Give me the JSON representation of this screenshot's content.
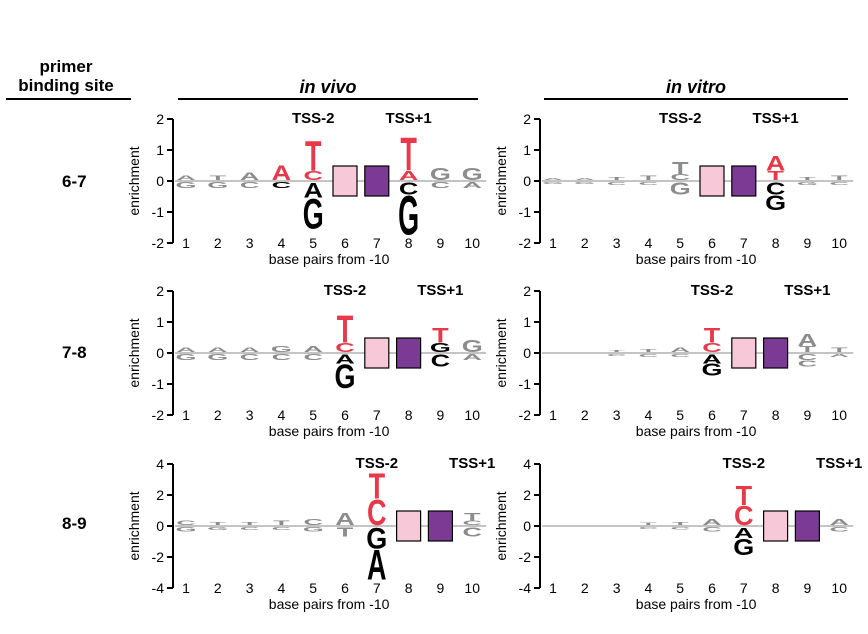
{
  "header": {
    "primer_line1": "primer",
    "primer_line2": "binding site",
    "in_vivo": "in vivo",
    "in_vitro": "in vitro"
  },
  "rows": [
    "6-7",
    "7-8",
    "8-9"
  ],
  "colors": {
    "T_highlight": "#e8394a",
    "pink_box": "#f6c8d8",
    "purple_box": "#7b3a93",
    "other_bases": "#8c8c8c",
    "strong_base": "#000000"
  },
  "chart_data": [
    {
      "type": "sequence-logo",
      "panel": "in vivo, 6-7",
      "ylabel": "enrichment",
      "xlabel": "base pairs from -10",
      "x": [
        1,
        2,
        3,
        4,
        5,
        6,
        7,
        8,
        9,
        10
      ],
      "ylim": [
        -2,
        2
      ],
      "yticks": [
        2,
        1,
        0,
        -1,
        -2
      ],
      "annotations": [
        {
          "text": "TSS-2",
          "x": 5
        },
        {
          "text": "TSS+1",
          "x": 8
        }
      ],
      "boxes": [
        {
          "x": 6,
          "color": "pink"
        },
        {
          "x": 7,
          "color": "purple"
        }
      ],
      "positions": [
        {
          "x": 1,
          "up": [
            [
              "A",
              0.15
            ]
          ],
          "down": [
            [
              "G",
              0.2
            ]
          ]
        },
        {
          "x": 2,
          "up": [
            [
              "T",
              0.15
            ]
          ],
          "down": [
            [
              "G",
              0.2
            ]
          ]
        },
        {
          "x": 3,
          "up": [
            [
              "A",
              0.25
            ]
          ],
          "down": [
            [
              "C",
              0.2
            ]
          ]
        },
        {
          "x": 4,
          "up": [
            [
              "A",
              0.5
            ]
          ],
          "down": [
            [
              "C",
              0.2
            ]
          ]
        },
        {
          "x": 5,
          "up": [
            [
              "C",
              0.3
            ],
            [
              "T",
              1.0
            ]
          ],
          "down": [
            [
              "A",
              0.5
            ],
            [
              "G",
              1.0
            ]
          ]
        },
        {
          "x": 8,
          "up": [
            [
              "A",
              0.3
            ],
            [
              "T",
              1.1
            ]
          ],
          "down": [
            [
              "C",
              0.4
            ],
            [
              "G",
              1.3
            ]
          ]
        },
        {
          "x": 9,
          "up": [
            [
              "G",
              0.4
            ]
          ],
          "down": [
            [
              "C",
              0.2
            ]
          ]
        },
        {
          "x": 10,
          "up": [
            [
              "G",
              0.4
            ]
          ],
          "down": [
            [
              "A",
              0.2
            ]
          ]
        }
      ]
    },
    {
      "type": "sequence-logo",
      "panel": "in vitro, 6-7",
      "ylabel": "enrichment",
      "xlabel": "base pairs from -10",
      "x": [
        1,
        2,
        3,
        4,
        5,
        6,
        7,
        8,
        9,
        10
      ],
      "ylim": [
        -2,
        2
      ],
      "yticks": [
        2,
        1,
        0,
        -1,
        -2
      ],
      "annotations": [
        {
          "text": "TSS-2",
          "x": 5
        },
        {
          "text": "TSS+1",
          "x": 8
        }
      ],
      "boxes": [
        {
          "x": 6,
          "color": "pink"
        },
        {
          "x": 7,
          "color": "purple"
        }
      ],
      "positions": [
        {
          "x": 1,
          "up": [
            [
              "A",
              0.05
            ]
          ],
          "down": [
            [
              "G",
              0.05
            ]
          ]
        },
        {
          "x": 2,
          "up": [
            [
              "A",
              0.05
            ]
          ],
          "down": [
            [
              "G",
              0.05
            ]
          ]
        },
        {
          "x": 3,
          "up": [
            [
              "T",
              0.1
            ]
          ],
          "down": [
            [
              "C",
              0.1
            ]
          ]
        },
        {
          "x": 4,
          "up": [
            [
              "T",
              0.15
            ]
          ],
          "down": [
            [
              "C",
              0.1
            ]
          ]
        },
        {
          "x": 5,
          "up": [
            [
              "C",
              0.2
            ],
            [
              "T",
              0.4
            ]
          ],
          "down": [
            [
              "G",
              0.4
            ]
          ]
        },
        {
          "x": 8,
          "up": [
            [
              "T",
              0.3
            ],
            [
              "A",
              0.5
            ]
          ],
          "down": [
            [
              "C",
              0.4
            ],
            [
              "G",
              0.5
            ]
          ]
        },
        {
          "x": 9,
          "up": [
            [
              "T",
              0.1
            ]
          ],
          "down": [
            [
              "G",
              0.1
            ]
          ]
        },
        {
          "x": 10,
          "up": [
            [
              "T",
              0.15
            ]
          ],
          "down": [
            [
              "C",
              0.1
            ]
          ]
        }
      ]
    },
    {
      "type": "sequence-logo",
      "panel": "in vivo, 7-8",
      "ylabel": "enrichment",
      "xlabel": "base pairs from -10",
      "x": [
        1,
        2,
        3,
        4,
        5,
        6,
        7,
        8,
        9,
        10
      ],
      "ylim": [
        -2,
        2
      ],
      "yticks": [
        2,
        1,
        0,
        -1,
        -2
      ],
      "annotations": [
        {
          "text": "TSS-2",
          "x": 6
        },
        {
          "text": "TSS+1",
          "x": 9
        }
      ],
      "boxes": [
        {
          "x": 7,
          "color": "pink"
        },
        {
          "x": 8,
          "color": "purple"
        }
      ],
      "positions": [
        {
          "x": 1,
          "up": [
            [
              "A",
              0.15
            ]
          ],
          "down": [
            [
              "G",
              0.2
            ]
          ]
        },
        {
          "x": 2,
          "up": [
            [
              "A",
              0.15
            ]
          ],
          "down": [
            [
              "G",
              0.2
            ]
          ]
        },
        {
          "x": 3,
          "up": [
            [
              "A",
              0.15
            ]
          ],
          "down": [
            [
              "C",
              0.2
            ]
          ]
        },
        {
          "x": 4,
          "up": [
            [
              "G",
              0.2
            ]
          ],
          "down": [
            [
              "C",
              0.2
            ]
          ]
        },
        {
          "x": 5,
          "up": [
            [
              "A",
              0.2
            ]
          ],
          "down": [
            [
              "C",
              0.2
            ]
          ]
        },
        {
          "x": 6,
          "up": [
            [
              "C",
              0.3
            ],
            [
              "T",
              0.9
            ]
          ],
          "down": [
            [
              "A",
              0.3
            ],
            [
              "G",
              0.8
            ]
          ]
        },
        {
          "x": 9,
          "up": [
            [
              "G",
              0.3
            ],
            [
              "T",
              0.5
            ]
          ],
          "down": [
            [
              "C",
              0.4
            ]
          ]
        },
        {
          "x": 10,
          "up": [
            [
              "G",
              0.4
            ]
          ],
          "down": [
            [
              "A",
              0.2
            ]
          ]
        }
      ]
    },
    {
      "type": "sequence-logo",
      "panel": "in vitro, 7-8",
      "ylabel": "enrichment",
      "xlabel": "base pairs from -10",
      "x": [
        1,
        2,
        3,
        4,
        5,
        6,
        7,
        8,
        9,
        10
      ],
      "ylim": [
        -2,
        2
      ],
      "yticks": [
        2,
        1,
        0,
        -1,
        -2
      ],
      "annotations": [
        {
          "text": "TSS-2",
          "x": 6
        },
        {
          "text": "TSS+1",
          "x": 9
        }
      ],
      "boxes": [
        {
          "x": 7,
          "color": "pink"
        },
        {
          "x": 8,
          "color": "purple"
        }
      ],
      "positions": [
        {
          "x": 3,
          "up": [
            [
              "T",
              0.05
            ]
          ],
          "down": [
            [
              "C",
              0.05
            ]
          ]
        },
        {
          "x": 4,
          "up": [
            [
              "T",
              0.1
            ]
          ],
          "down": [
            [
              "C",
              0.1
            ]
          ]
        },
        {
          "x": 5,
          "up": [
            [
              "A",
              0.15
            ]
          ],
          "down": [
            [
              "C",
              0.1
            ]
          ]
        },
        {
          "x": 6,
          "up": [
            [
              "C",
              0.3
            ],
            [
              "T",
              0.5
            ]
          ],
          "down": [
            [
              "A",
              0.3
            ],
            [
              "G",
              0.4
            ]
          ]
        },
        {
          "x": 9,
          "up": [
            [
              "T",
              0.2
            ],
            [
              "A",
              0.4
            ]
          ],
          "down": [
            [
              "C",
              0.2
            ],
            [
              "C",
              0.2
            ]
          ]
        },
        {
          "x": 10,
          "up": [
            [
              "T",
              0.15
            ]
          ],
          "down": [
            [
              "A",
              0.1
            ]
          ]
        }
      ]
    },
    {
      "type": "sequence-logo",
      "panel": "in vivo, 8-9",
      "ylabel": "enrichment",
      "xlabel": "base pairs from -10",
      "x": [
        1,
        2,
        3,
        4,
        5,
        6,
        7,
        8,
        9,
        10
      ],
      "ylim": [
        -4,
        4
      ],
      "yticks": [
        4,
        2,
        0,
        -2,
        -4
      ],
      "annotations": [
        {
          "text": "TSS-2",
          "x": 7
        },
        {
          "text": "TSS+1",
          "x": 10
        }
      ],
      "boxes": [
        {
          "x": 8,
          "color": "pink"
        },
        {
          "x": 9,
          "color": "purple"
        }
      ],
      "positions": [
        {
          "x": 1,
          "up": [
            [
              "C",
              0.3
            ]
          ],
          "down": [
            [
              "G",
              0.3
            ]
          ]
        },
        {
          "x": 2,
          "up": [
            [
              "T",
              0.2
            ]
          ],
          "down": [
            [
              "G",
              0.2
            ]
          ]
        },
        {
          "x": 3,
          "up": [
            [
              "T",
              0.2
            ]
          ],
          "down": [
            [
              "C",
              0.2
            ]
          ]
        },
        {
          "x": 4,
          "up": [
            [
              "T",
              0.3
            ]
          ],
          "down": [
            [
              "C",
              0.2
            ]
          ]
        },
        {
          "x": 5,
          "up": [
            [
              "C",
              0.4
            ]
          ],
          "down": [
            [
              "G",
              0.3
            ]
          ]
        },
        {
          "x": 6,
          "up": [
            [
              "A",
              0.8
            ]
          ],
          "down": [
            [
              "T",
              0.6
            ]
          ]
        },
        {
          "x": 7,
          "up": [
            [
              "C",
              1.7
            ],
            [
              "T",
              1.7
            ]
          ],
          "down": [
            [
              "G",
              1.4
            ],
            [
              "A",
              2.0
            ]
          ]
        },
        {
          "x": 10,
          "up": [
            [
              "C",
              0.3
            ],
            [
              "T",
              0.5
            ]
          ],
          "down": [
            [
              "C",
              0.6
            ]
          ]
        }
      ]
    },
    {
      "type": "sequence-logo",
      "panel": "in vitro, 8-9",
      "ylabel": "enrichment",
      "xlabel": "base pairs from -10",
      "x": [
        1,
        2,
        3,
        4,
        5,
        6,
        7,
        8,
        9,
        10
      ],
      "ylim": [
        -4,
        4
      ],
      "yticks": [
        4,
        2,
        0,
        -2,
        -4
      ],
      "annotations": [
        {
          "text": "TSS-2",
          "x": 7
        },
        {
          "text": "TSS+1",
          "x": 10
        }
      ],
      "boxes": [
        {
          "x": 8,
          "color": "pink"
        },
        {
          "x": 9,
          "color": "purple"
        }
      ],
      "positions": [
        {
          "x": 4,
          "up": [
            [
              "T",
              0.15
            ]
          ],
          "down": [
            [
              "C",
              0.1
            ]
          ]
        },
        {
          "x": 5,
          "up": [
            [
              "T",
              0.2
            ]
          ],
          "down": [
            [
              "C",
              0.15
            ]
          ]
        },
        {
          "x": 6,
          "up": [
            [
              "A",
              0.4
            ]
          ],
          "down": [
            [
              "C",
              0.3
            ]
          ]
        },
        {
          "x": 7,
          "up": [
            [
              "C",
              1.3
            ],
            [
              "T",
              1.3
            ]
          ],
          "down": [
            [
              "A",
              0.7
            ],
            [
              "G",
              1.1
            ]
          ]
        },
        {
          "x": 10,
          "up": [
            [
              "A",
              0.4
            ]
          ],
          "down": [
            [
              "C",
              0.3
            ]
          ]
        }
      ]
    }
  ]
}
